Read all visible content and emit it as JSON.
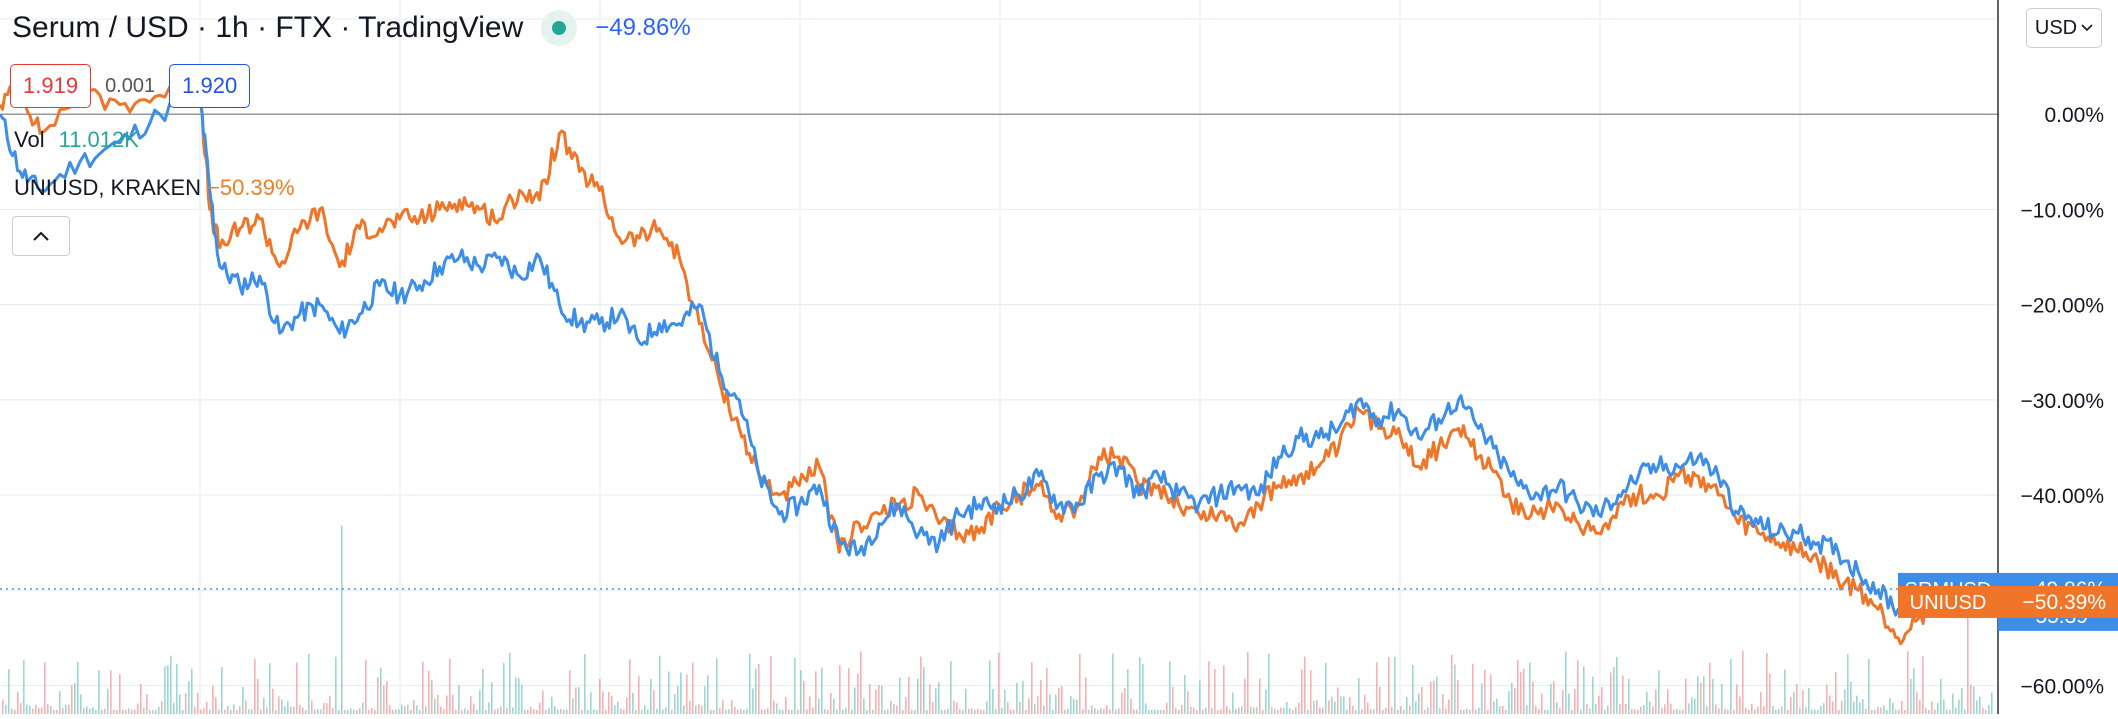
{
  "header": {
    "title": "Serum / USD · 1h · FTX · TradingView",
    "change": "−49.86%"
  },
  "ohlc": {
    "bid": "1.919",
    "spread": "0.001",
    "ask": "1.920"
  },
  "volume": {
    "label": "Vol",
    "value": "11.012K"
  },
  "comparison": {
    "symbol": "UNIUSD, KRAKEN",
    "change": "−50.39%"
  },
  "currency": {
    "label": "USD"
  },
  "colors": {
    "srmusd": "#3d8ee8",
    "uniusd": "#f07528",
    "vol_up": "#26a69a",
    "vol_down": "#ef5350",
    "grid": "#e9eef4",
    "zero_line": "#9598a1"
  },
  "chart_data": {
    "type": "line",
    "y_unit": "percent change",
    "ylim": [
      -63,
      12
    ],
    "y_ticks": [
      0,
      -10,
      -20,
      -30,
      -40,
      -60
    ],
    "y_tick_labels": [
      "0.00%",
      "−10.00%",
      "−20.00%",
      "−30.00%",
      "−40.00%",
      "−60.00%"
    ],
    "grid": true,
    "series": [
      {
        "name": "SRMUSD",
        "x": [
          0,
          10,
          20,
          40,
          60,
          80,
          100,
          105,
          110,
          120,
          130,
          140,
          150,
          160,
          170,
          180,
          190,
          200,
          210,
          220,
          230,
          240,
          250,
          260,
          270,
          280,
          290,
          300,
          310,
          320,
          330,
          340,
          350,
          360,
          370,
          380,
          390,
          400,
          410,
          420,
          430,
          440,
          450,
          460,
          470,
          480,
          490,
          500,
          510,
          520,
          530,
          540,
          550,
          560,
          570,
          580,
          590,
          600,
          610,
          620,
          630,
          640,
          650,
          660,
          670,
          680,
          690,
          700,
          710,
          720,
          730,
          740,
          750,
          760,
          770,
          780,
          790,
          800,
          810,
          820,
          830,
          840,
          850,
          860,
          870,
          880,
          890,
          900,
          910,
          920,
          930,
          940,
          950,
          960,
          970,
          980,
          990,
          1000
        ],
        "values": [
          0,
          -6,
          -8,
          -5,
          -3,
          0,
          2,
          -8,
          -16,
          -18,
          -17,
          -23,
          -21,
          -20,
          -23,
          -21,
          -18,
          -19,
          -18,
          -16,
          -15,
          -16,
          -15,
          -17,
          -15,
          -20,
          -22,
          -22,
          -21,
          -24,
          -22,
          -22,
          -20,
          -27,
          -30,
          -38,
          -42,
          -41,
          -39,
          -45,
          -46,
          -43,
          -41,
          -44,
          -45,
          -42,
          -41,
          -41,
          -40,
          -38,
          -41,
          -41,
          -38,
          -37,
          -40,
          -38,
          -40,
          -41,
          -40,
          -39,
          -40,
          -36,
          -34,
          -34,
          -33,
          -30,
          -32,
          -31,
          -34,
          -32,
          -30,
          -33,
          -36,
          -39,
          -40,
          -39,
          -41,
          -42,
          -40,
          -38,
          -37,
          -37,
          -36,
          -38,
          -42,
          -43,
          -44,
          -44,
          -45,
          -46,
          -48,
          -50,
          -52,
          -50,
          -49,
          -51,
          -52,
          -49.86
        ]
      },
      {
        "name": "UNIUSD",
        "x": [
          0,
          10,
          20,
          40,
          60,
          80,
          100,
          105,
          110,
          120,
          130,
          140,
          150,
          160,
          170,
          180,
          190,
          200,
          210,
          220,
          230,
          240,
          250,
          260,
          270,
          280,
          290,
          300,
          310,
          320,
          330,
          340,
          350,
          360,
          370,
          380,
          390,
          400,
          410,
          420,
          430,
          440,
          450,
          460,
          470,
          480,
          490,
          500,
          510,
          520,
          530,
          540,
          550,
          560,
          570,
          580,
          590,
          600,
          610,
          620,
          630,
          640,
          650,
          660,
          670,
          680,
          690,
          700,
          710,
          720,
          730,
          740,
          750,
          760,
          770,
          780,
          790,
          800,
          810,
          820,
          830,
          840,
          850,
          860,
          870,
          880,
          890,
          900,
          910,
          920,
          930,
          940,
          950,
          960,
          970,
          980,
          990,
          1000
        ],
        "values": [
          1,
          3,
          -2,
          2,
          1,
          2,
          3,
          -10,
          -14,
          -12,
          -11,
          -16,
          -12,
          -10,
          -16,
          -12,
          -12,
          -11,
          -11,
          -10,
          -9,
          -10,
          -11,
          -8,
          -9,
          -2,
          -6,
          -8,
          -13,
          -13,
          -12,
          -15,
          -22,
          -28,
          -33,
          -38,
          -40,
          -39,
          -37,
          -46,
          -43,
          -42,
          -41,
          -40,
          -43,
          -44,
          -44,
          -41,
          -40,
          -39,
          -42,
          -41,
          -36,
          -36,
          -39,
          -39,
          -41,
          -42,
          -42,
          -43,
          -41,
          -39,
          -38,
          -37,
          -35,
          -31,
          -33,
          -33,
          -37,
          -35,
          -33,
          -36,
          -38,
          -42,
          -42,
          -41,
          -43,
          -44,
          -41,
          -40,
          -40,
          -38,
          -38,
          -40,
          -43,
          -44,
          -45,
          -46,
          -47,
          -49,
          -50,
          -52,
          -55,
          -53,
          -51,
          -50,
          -51,
          -50.39
        ]
      }
    ],
    "last_labels": [
      {
        "symbol": "SRMUSD",
        "value": "−49.86%",
        "countdown": "55:39"
      },
      {
        "symbol": "UNIUSD",
        "value": "−50.39%"
      }
    ]
  }
}
